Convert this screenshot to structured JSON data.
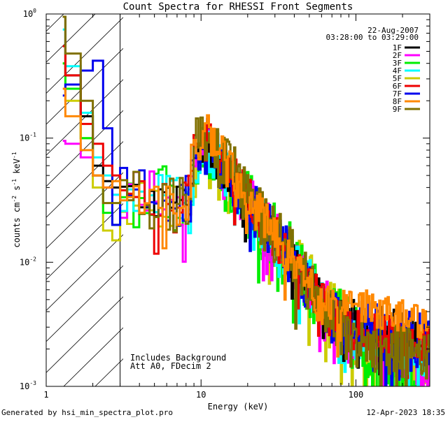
{
  "chart_data": {
    "type": "line",
    "title": "Count Spectra for RHESSI Front Segments",
    "xlabel": "Energy (keV)",
    "ylabel_base": "counts cm",
    "ylabel_exp1": "-2",
    "ylabel_mid": " s",
    "ylabel_exp2": "-1",
    "ylabel_mid2": " keV",
    "ylabel_exp3": "-1",
    "xscale": "log",
    "yscale": "log",
    "xlim": [
      1,
      300
    ],
    "ylim": [
      0.001,
      1
    ],
    "x_ticks": [
      {
        "value": 1,
        "label": "1"
      },
      {
        "value": 10,
        "label": "10"
      },
      {
        "value": 100,
        "label": "100"
      }
    ],
    "y_ticks": [
      {
        "value": 0.001,
        "base": "10",
        "exp": "-3"
      },
      {
        "value": 0.01,
        "base": "10",
        "exp": "-2"
      },
      {
        "value": 0.1,
        "base": "10",
        "exp": "-1"
      },
      {
        "value": 1,
        "base": "10",
        "exp": "0"
      }
    ],
    "hatched_region": {
      "from": 1,
      "to": 3
    },
    "date_label": "22-Aug-2007",
    "time_range_label": "03:28:00 to 03:29:00",
    "annotations": [
      "Includes Background",
      "Att A0, FDecim 2"
    ],
    "legend_position": "top-right",
    "series": [
      {
        "name": "1F",
        "color": "#000000",
        "peak": 0.085,
        "tail": 0.0035,
        "noise": 0.35,
        "low": [
          0.95,
          0.32,
          0.15,
          0.06,
          0.045,
          0.04
        ]
      },
      {
        "name": "2F",
        "color": "#ff00ff",
        "peak": 0.08,
        "tail": 0.0022,
        "noise": 0.5,
        "low": [
          0.095,
          0.09,
          0.07,
          0.05,
          0.04,
          0.035
        ]
      },
      {
        "name": "3F",
        "color": "#00ee00",
        "peak": 0.07,
        "tail": 0.0013,
        "noise": 0.65,
        "low": [
          0.4,
          0.25,
          0.1,
          0.05,
          0.025,
          0.02
        ]
      },
      {
        "name": "4F",
        "color": "#00ffff",
        "peak": 0.078,
        "tail": 0.0025,
        "noise": 0.45,
        "low": [
          0.75,
          0.38,
          0.16,
          0.07,
          0.05,
          0.035
        ]
      },
      {
        "name": "5F",
        "color": "#cccc00",
        "peak": 0.07,
        "tail": 0.0016,
        "noise": 0.55,
        "low": [
          0.4,
          0.2,
          0.1,
          0.04,
          0.018,
          0.015
        ]
      },
      {
        "name": "6F",
        "color": "#ee0000",
        "peak": 0.095,
        "tail": 0.0028,
        "noise": 0.4,
        "low": [
          0.55,
          0.32,
          0.13,
          0.09,
          0.06,
          0.05
        ]
      },
      {
        "name": "7F",
        "color": "#0000ee",
        "peak": 0.09,
        "tail": 0.003,
        "noise": 0.5,
        "low": [
          0.22,
          0.27,
          0.35,
          0.42,
          0.12,
          0.02
        ]
      },
      {
        "name": "8F",
        "color": "#ff8800",
        "peak": 0.11,
        "tail": 0.0045,
        "noise": 0.35,
        "low": [
          0.25,
          0.15,
          0.08,
          0.05,
          0.04,
          0.045
        ]
      },
      {
        "name": "9F",
        "color": "#807000",
        "peak": 0.1,
        "tail": 0.0024,
        "noise": 0.55,
        "low": [
          0.95,
          0.48,
          0.2,
          0.05,
          0.03,
          0.03
        ]
      }
    ]
  },
  "footer": {
    "generated_by": "Generated by hsi_min_spectra_plot.pro",
    "timestamp": "12-Apr-2023 18:35"
  }
}
